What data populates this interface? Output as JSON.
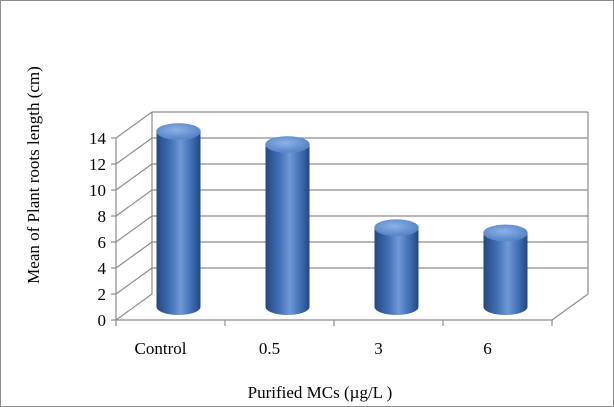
{
  "chart_data": {
    "type": "bar",
    "style": "3d-cylinder",
    "categories": [
      "Control",
      "0.5",
      "3",
      "6"
    ],
    "values": [
      13.5,
      12.5,
      6.1,
      5.7
    ],
    "xlabel": "Purified MCs (µg/L )",
    "ylabel": "Mean of Plant roots length  (cm)",
    "ylim": [
      0,
      14
    ],
    "yticks": [
      0,
      2,
      4,
      6,
      8,
      10,
      12,
      14
    ],
    "grid": true,
    "legend": "none",
    "colors": {
      "bar_body": "#3f6eb4",
      "bar_dark": "#24487f",
      "bar_light": "#7aa2dc",
      "grid": "#8c8c8c",
      "frame": "#8c8c8c"
    }
  }
}
